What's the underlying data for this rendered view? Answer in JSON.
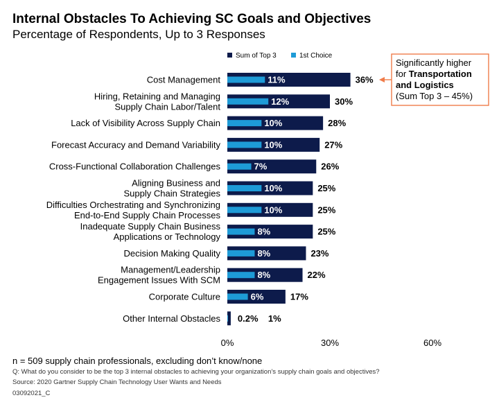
{
  "chart_data": {
    "type": "bar",
    "title": "Internal Obstacles To Achieving SC Goals and Objectives",
    "subtitle": "Percentage of Respondents, Up to 3 Responses",
    "categories": [
      [
        "Cost Management"
      ],
      [
        "Hiring, Retaining and Managing",
        "Supply Chain Labor/Talent"
      ],
      [
        "Lack of Visibility Across Supply Chain"
      ],
      [
        "Forecast Accuracy and Demand Variability"
      ],
      [
        "Cross-Functional Collaboration Challenges"
      ],
      [
        "Aligning Business and",
        "Supply Chain Strategies"
      ],
      [
        "Difficulties Orchestrating and Synchronizing",
        "End-to-End Supply Chain Processes"
      ],
      [
        "Inadequate Supply Chain Business",
        "Applications or Technology"
      ],
      [
        "Decision Making Quality"
      ],
      [
        "Management/Leadership",
        "Engagement Issues With SCM"
      ],
      [
        "Corporate Culture"
      ],
      [
        "Other Internal Obstacles"
      ]
    ],
    "series": [
      {
        "name": "Sum of Top 3",
        "color": "#0d1b4b",
        "values": [
          36,
          30,
          28,
          27,
          26,
          25,
          25,
          25,
          23,
          22,
          17,
          1
        ],
        "labels": [
          "36%",
          "30%",
          "28%",
          "27%",
          "26%",
          "25%",
          "25%",
          "25%",
          "23%",
          "22%",
          "17%",
          "1%"
        ]
      },
      {
        "name": "1st Choice",
        "color": "#1e9bd7",
        "values": [
          11,
          12,
          10,
          10,
          7,
          10,
          10,
          8,
          8,
          8,
          6,
          0.2
        ],
        "labels": [
          "11%",
          "12%",
          "10%",
          "10%",
          "7%",
          "10%",
          "10%",
          "8%",
          "8%",
          "8%",
          "6%",
          "0.2%"
        ]
      }
    ],
    "xlim": [
      0,
      60
    ],
    "xticks": [
      "0%",
      "30%",
      "60%"
    ],
    "legend_position": "top-right",
    "grid": false,
    "annotation": {
      "lines": [
        [
          {
            "text": "Significantly higher",
            "bold": false
          }
        ],
        [
          {
            "text": "for ",
            "bold": false
          },
          {
            "text": "Transportation",
            "bold": true
          }
        ],
        [
          {
            "text": "and Logistics",
            "bold": true
          }
        ],
        [
          {
            "text": "(Sum Top 3 – 45%)",
            "bold": false
          }
        ]
      ],
      "border_color": "#f07c4a",
      "points_to": "Cost Management"
    }
  },
  "notes": {
    "sample": "n = 509 supply chain professionals, excluding don’t know/none",
    "question": "Q: What do you consider to be the top 3 internal obstacles to achieving your organization’s supply chain goals and objectives?",
    "source": "Source: 2020 Gartner Supply Chain Technology User Wants and Needs",
    "code": "03092021_C"
  }
}
